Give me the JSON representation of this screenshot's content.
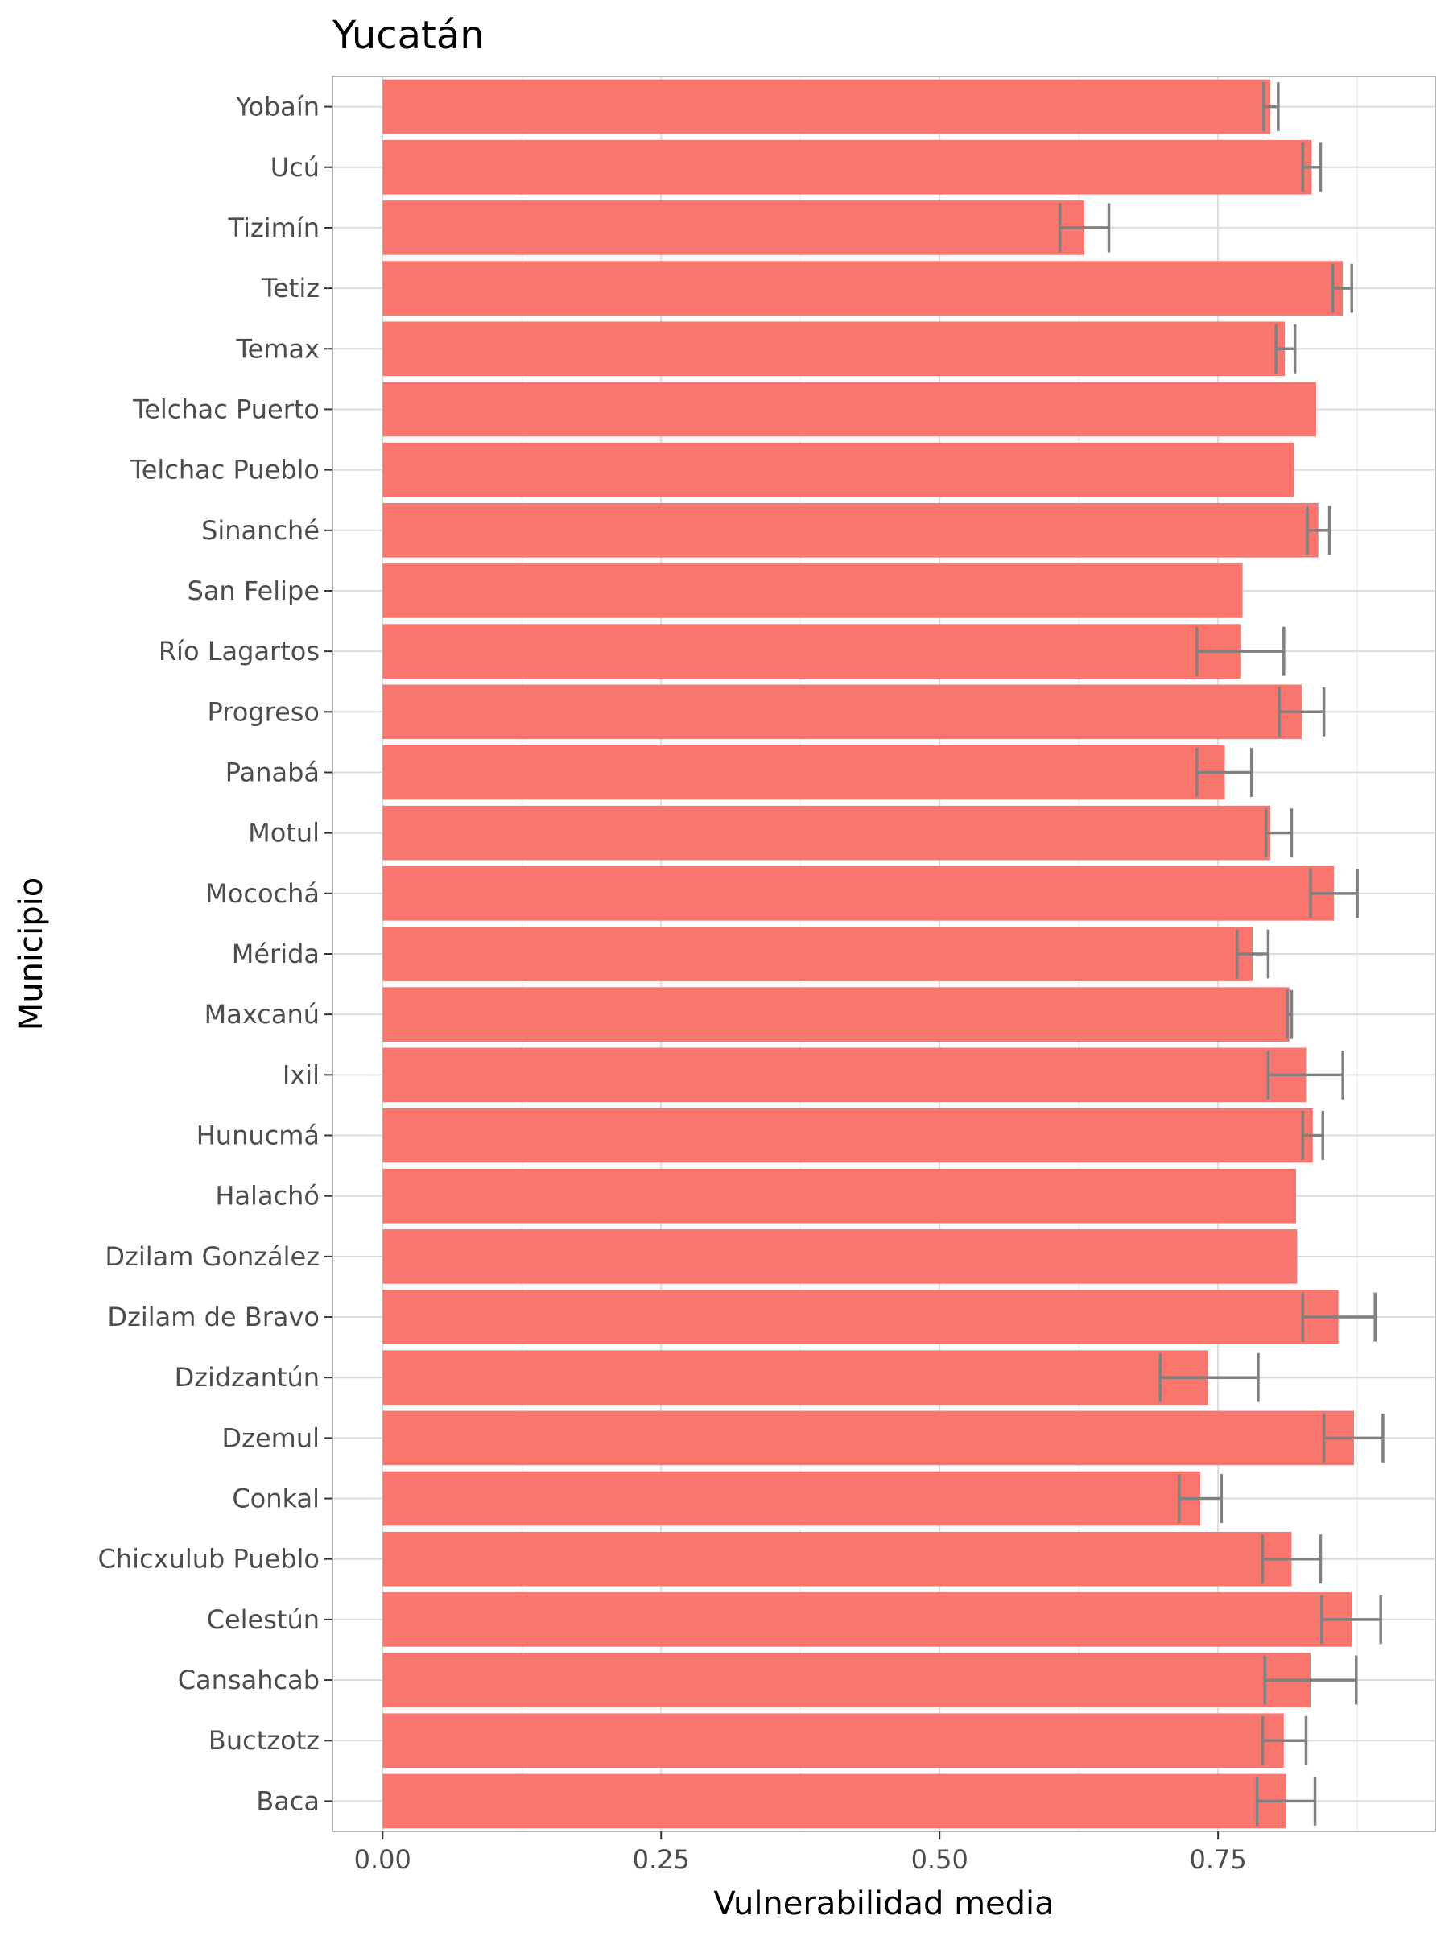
{
  "chart_data": {
    "type": "bar",
    "orientation": "horizontal",
    "title": "Yucatán",
    "xlabel": "Vulnerabilidad media",
    "ylabel": "Municipio",
    "xlim": [
      -0.045,
      0.945
    ],
    "xticks": [
      0,
      0.25,
      0.5,
      0.75
    ],
    "xtick_labels": [
      "0.00",
      "0.25",
      "0.50",
      "0.75"
    ],
    "grid": true,
    "bar_color": "#F8766D",
    "errorbar_color": "#808080",
    "categories": [
      "Yobaín",
      "Ucú",
      "Tizimín",
      "Tetiz",
      "Temax",
      "Telchac Puerto",
      "Telchac Pueblo",
      "Sinanché",
      "San Felipe",
      "Río Lagartos",
      "Progreso",
      "Panabá",
      "Motul",
      "Mocochá",
      "Mérida",
      "Maxcanú",
      "Ixil",
      "Hunucmá",
      "Halachó",
      "Dzilam González",
      "Dzilam de Bravo",
      "Dzidzantún",
      "Dzemul",
      "Conkal",
      "Chicxulub Pueblo",
      "Celestún",
      "Cansahcab",
      "Buctzotz",
      "Baca"
    ],
    "values": [
      0.797,
      0.834,
      0.63,
      0.862,
      0.81,
      0.838,
      0.818,
      0.84,
      0.772,
      0.77,
      0.825,
      0.756,
      0.797,
      0.854,
      0.781,
      0.814,
      0.829,
      0.835,
      0.82,
      0.821,
      0.858,
      0.741,
      0.872,
      0.734,
      0.816,
      0.87,
      0.833,
      0.809,
      0.811
    ],
    "error_low": [
      0.791,
      0.826,
      0.608,
      0.853,
      0.802,
      null,
      null,
      0.83,
      null,
      0.731,
      0.805,
      0.731,
      0.793,
      0.833,
      0.767,
      0.812,
      0.795,
      0.826,
      null,
      null,
      0.826,
      0.698,
      0.845,
      0.715,
      0.79,
      0.843,
      0.792,
      0.79,
      0.785
    ],
    "error_high": [
      0.804,
      0.842,
      0.652,
      0.87,
      0.819,
      null,
      null,
      0.85,
      null,
      0.809,
      0.845,
      0.78,
      0.816,
      0.875,
      0.795,
      0.816,
      0.862,
      0.844,
      null,
      null,
      0.891,
      0.786,
      0.898,
      0.753,
      0.842,
      0.896,
      0.874,
      0.829,
      0.837
    ]
  }
}
